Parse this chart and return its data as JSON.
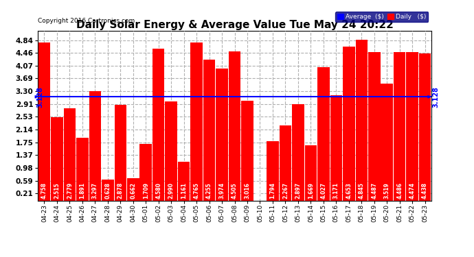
{
  "title": "Daily Solar Energy & Average Value Tue May 24 20:22",
  "copyright": "Copyright 2016 Cartronics.com",
  "categories": [
    "04-23",
    "04-24",
    "04-25",
    "04-26",
    "04-27",
    "04-28",
    "04-29",
    "04-30",
    "05-01",
    "05-02",
    "05-03",
    "05-04",
    "05-05",
    "05-06",
    "05-07",
    "05-08",
    "05-09",
    "05-10",
    "05-11",
    "05-12",
    "05-13",
    "05-14",
    "05-15",
    "05-16",
    "05-17",
    "05-18",
    "05-19",
    "05-20",
    "05-21",
    "05-22",
    "05-23"
  ],
  "values": [
    4.758,
    2.515,
    2.779,
    1.891,
    3.297,
    0.628,
    2.878,
    0.662,
    1.709,
    4.58,
    2.99,
    1.161,
    4.765,
    4.255,
    3.974,
    4.505,
    3.016,
    0.0,
    1.794,
    2.267,
    2.897,
    1.669,
    4.027,
    3.171,
    4.653,
    4.845,
    4.487,
    3.519,
    4.486,
    4.474,
    4.438
  ],
  "average": 3.128,
  "bar_color": "#ff0000",
  "avg_line_color": "#0000ff",
  "background_color": "#ffffff",
  "grid_color": "#b0b0b0",
  "ylim_min": 0,
  "ylim_max": 5.12,
  "yticks": [
    0.21,
    0.59,
    0.98,
    1.37,
    1.75,
    2.14,
    2.53,
    2.91,
    3.3,
    3.69,
    4.07,
    4.46,
    4.84
  ],
  "title_fontsize": 11,
  "avg_label": "3.128",
  "legend_avg_label": "Average  ($)",
  "legend_daily_label": "Daily   ($)",
  "bar_label_fontsize": 5.5,
  "ytick_fontsize": 7.5,
  "xtick_fontsize": 6.5
}
